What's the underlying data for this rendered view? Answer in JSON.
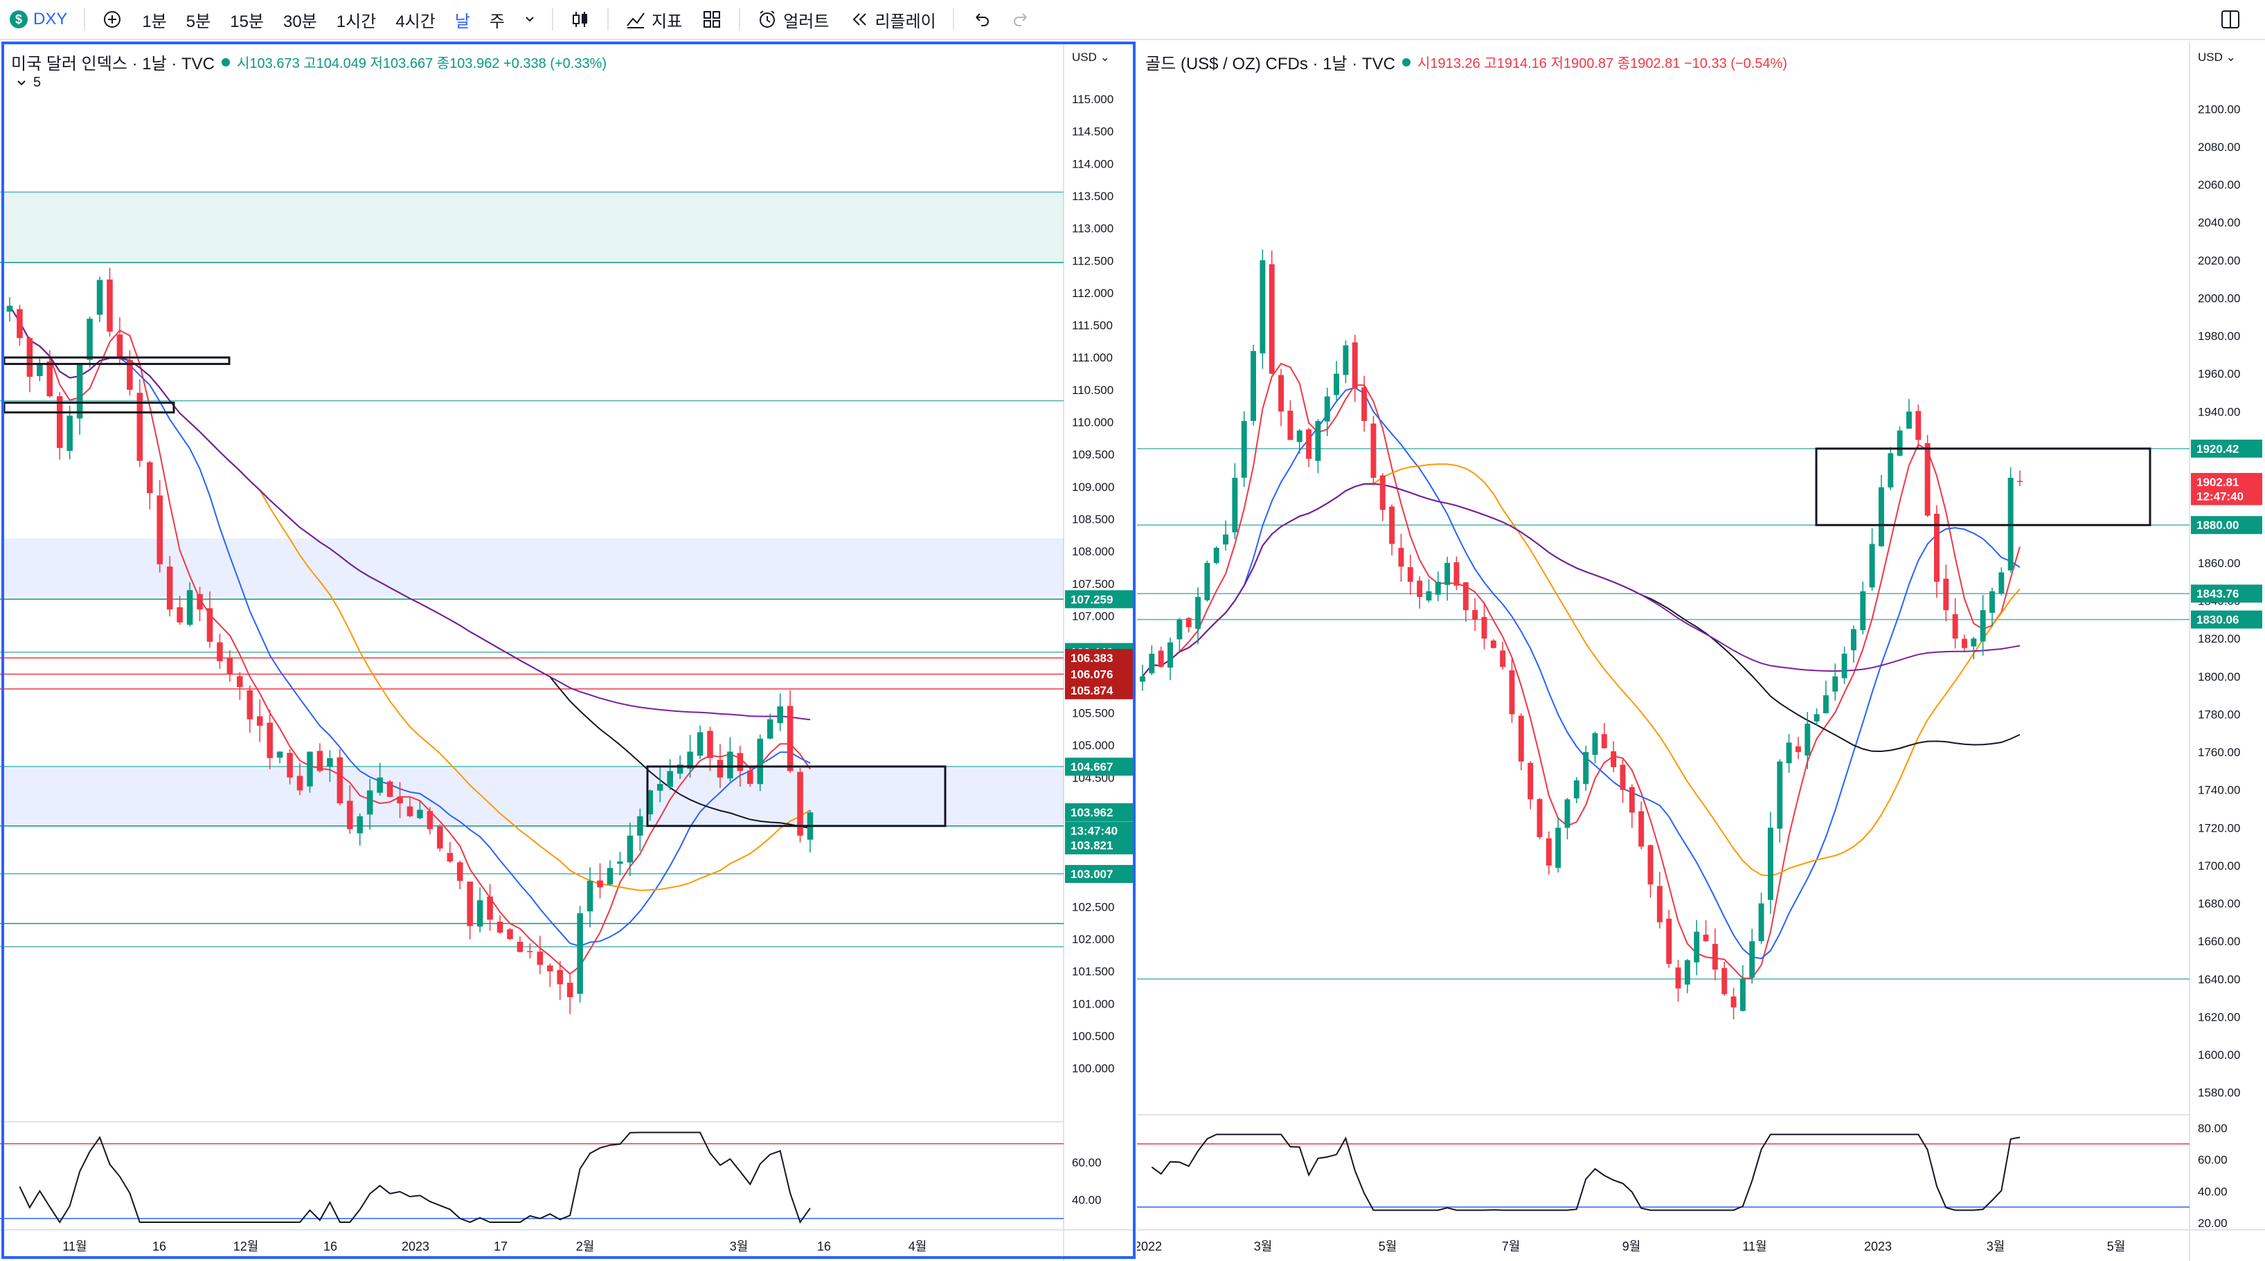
{
  "toolbar": {
    "symbol": "DXY",
    "intervals": [
      "1분",
      "5분",
      "15분",
      "30분",
      "1시간",
      "4시간",
      "날",
      "주"
    ],
    "active_interval": "날",
    "indicators_label": "지표",
    "alert_label": "얼러트",
    "replay_label": "리플레이",
    "icons": [
      "plus-circle-icon",
      "candles-icon",
      "indicators-icon",
      "layout-icon",
      "alarm-icon",
      "replay-icon",
      "undo-icon",
      "redo-icon",
      "split-view-icon"
    ]
  },
  "left": {
    "title": "미국 달러 인덱스 · 1날 · TVC",
    "o_label": "시",
    "o": "103.673",
    "h_label": "고",
    "h": "104.049",
    "l_label": "저",
    "l": "103.667",
    "c_label": "종",
    "c": "103.962",
    "chg": "+0.338 (+0.33%)",
    "collapse_count": "5",
    "currency": "USD",
    "price_ticks": [
      "115.000",
      "114.500",
      "114.000",
      "113.500",
      "113.000",
      "112.500",
      "112.000",
      "111.500",
      "111.000",
      "110.500",
      "110.000",
      "109.500",
      "109.000",
      "108.500",
      "108.000",
      "107.500",
      "107.000",
      "106.500",
      "106.000",
      "105.500",
      "105.000",
      "104.500",
      "104.000",
      "103.500",
      "103.000",
      "102.500",
      "102.000",
      "101.500",
      "101.000",
      "100.500",
      "100.000"
    ],
    "price_labels": [
      {
        "text": "107.259",
        "value": 107.259,
        "color": "#089981"
      },
      {
        "text": "106.442",
        "value": 106.442,
        "color": "#089981"
      },
      {
        "text": "106.383",
        "value": 106.35,
        "color": "#b71c1c"
      },
      {
        "text": "106.076",
        "value": 106.1,
        "color": "#b71c1c"
      },
      {
        "text": "105.874",
        "value": 105.85,
        "color": "#b71c1c"
      },
      {
        "text": "104.667",
        "value": 104.667,
        "color": "#089981"
      },
      {
        "text": "103.962",
        "value": 103.962,
        "color": "#089981"
      },
      {
        "text": "13:47:40",
        "value": 103.68,
        "color": "#089981"
      },
      {
        "text": "103.821",
        "value": 103.45,
        "color": "#089981"
      },
      {
        "text": "103.007",
        "value": 103.007,
        "color": "#089981"
      }
    ],
    "rsi_ticks": [
      "60.00",
      "40.00"
    ],
    "time_ticks": [
      "11월",
      "16",
      "12월",
      "16",
      "2023",
      "17",
      "2월",
      "3월",
      "16",
      "4월"
    ]
  },
  "right": {
    "title": "골드 (US$ / OZ) CFDs · 1날 · TVC",
    "o_label": "시",
    "o": "1913.26",
    "h_label": "고",
    "h": "1914.16",
    "l_label": "저",
    "l": "1900.87",
    "c_label": "종",
    "c": "1902.81",
    "chg": "−10.33 (−0.54%)",
    "currency": "USD",
    "price_ticks": [
      "2100.00",
      "2080.00",
      "2060.00",
      "2040.00",
      "2020.00",
      "2000.00",
      "1980.00",
      "1960.00",
      "1940.00",
      "1920.00",
      "1900.00",
      "1880.00",
      "1860.00",
      "1840.00",
      "1820.00",
      "1800.00",
      "1780.00",
      "1760.00",
      "1740.00",
      "1720.00",
      "1700.00",
      "1680.00",
      "1660.00",
      "1640.00",
      "1620.00",
      "1600.00",
      "1580.00"
    ],
    "price_labels": [
      {
        "text": "1920.42",
        "value": 1920.42,
        "color": "#089981"
      },
      {
        "text": "1902.81",
        "value": 1902.8,
        "color": "#f23645"
      },
      {
        "text": "12:47:40",
        "value": 1895.3,
        "color": "#f23645"
      },
      {
        "text": "1880.00",
        "value": 1880,
        "color": "#089981"
      },
      {
        "text": "1843.76",
        "value": 1843.76,
        "color": "#089981"
      },
      {
        "text": "1830.06",
        "value": 1830.06,
        "color": "#089981"
      }
    ],
    "rsi_ticks": [
      "80.00",
      "60.00",
      "40.00",
      "20.00"
    ],
    "time_ticks": [
      "2022",
      "3월",
      "5월",
      "7월",
      "9월",
      "11월",
      "2023",
      "3월",
      "5월"
    ]
  },
  "chart_data": [
    {
      "type": "candlestick",
      "title": "미국 달러 인덱스 · 1날 · TVC",
      "ylim": [
        99.6,
        115.3
      ],
      "x_ticks": [
        "11월",
        "16",
        "12월",
        "16",
        "2023",
        "17",
        "2월",
        "3월",
        "16",
        "4월"
      ],
      "close_series": [
        111.8,
        111.3,
        110.7,
        110.9,
        110.4,
        109.6,
        110.1,
        110.9,
        111.6,
        112.2,
        111.4,
        111.0,
        110.5,
        109.4,
        108.9,
        107.8,
        107.1,
        106.9,
        107.4,
        107.1,
        106.6,
        106.3,
        106.1,
        105.9,
        105.4,
        105.3,
        104.8,
        104.9,
        104.5,
        104.3,
        104.9,
        104.6,
        104.8,
        104.1,
        103.7,
        103.9,
        104.3,
        104.5,
        104.2,
        104.1,
        103.9,
        104.0,
        103.7,
        103.4,
        103.2,
        102.9,
        102.2,
        102.6,
        102.3,
        102.1,
        102.0,
        101.8,
        101.8,
        101.6,
        101.5,
        101.3,
        101.1,
        102.4,
        102.9,
        102.8,
        103.1,
        103.2,
        103.6,
        103.9,
        104.3,
        104.4,
        104.6,
        104.7,
        104.9,
        105.2,
        104.8,
        104.5,
        104.9,
        104.6,
        104.4,
        105.1,
        105.4,
        105.6,
        104.6,
        103.6,
        103.96
      ],
      "reference_lines": [
        113.56,
        112.47,
        110.33,
        107.26,
        106.44,
        106.35,
        106.1,
        105.87,
        104.67,
        103.75,
        103.01,
        102.24,
        101.88
      ],
      "zones": [
        {
          "from": 112.47,
          "to": 113.56
        },
        {
          "from": 107.3,
          "to": 108.2
        },
        {
          "from": 103.75,
          "to": 104.67
        }
      ]
    },
    {
      "type": "candlestick",
      "title": "골드 (US$ / OZ) CFDs · 1날 · TVC",
      "ylim": [
        1570,
        2110
      ],
      "x_ticks": [
        "2022",
        "3월",
        "5월",
        "7월",
        "9월",
        "11월",
        "2023",
        "3월",
        "5월"
      ],
      "close_series": [
        1800,
        1812,
        1805,
        1818,
        1830,
        1826,
        1842,
        1860,
        1868,
        1875,
        1905,
        1935,
        1972,
        2020,
        1960,
        1940,
        1925,
        1930,
        1915,
        1935,
        1948,
        1960,
        1975,
        1952,
        1935,
        1905,
        1888,
        1870,
        1858,
        1850,
        1842,
        1845,
        1850,
        1860,
        1848,
        1835,
        1830,
        1820,
        1815,
        1805,
        1780,
        1755,
        1735,
        1715,
        1700,
        1720,
        1735,
        1745,
        1760,
        1770,
        1762,
        1752,
        1740,
        1728,
        1710,
        1690,
        1670,
        1648,
        1635,
        1650,
        1665,
        1660,
        1645,
        1632,
        1625,
        1640,
        1660,
        1680,
        1720,
        1755,
        1765,
        1760,
        1775,
        1780,
        1790,
        1800,
        1812,
        1825,
        1845,
        1870,
        1900,
        1918,
        1930,
        1940,
        1925,
        1885,
        1850,
        1835,
        1820,
        1815,
        1820,
        1835,
        1845,
        1855,
        1905,
        1902.81
      ],
      "reference_lines": [
        1920.42,
        1880,
        1843.76,
        1830.06,
        1640
      ]
    }
  ]
}
